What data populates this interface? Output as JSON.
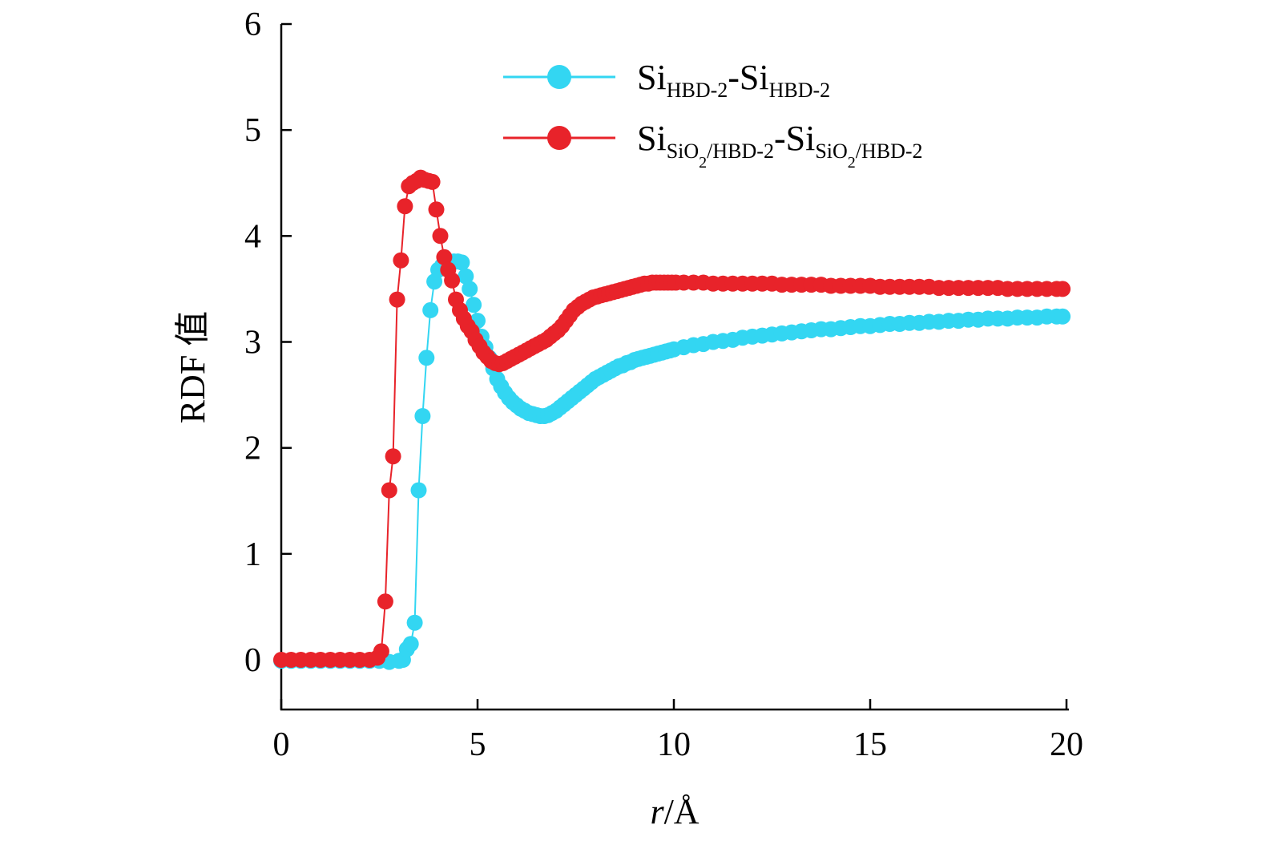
{
  "chart_data": {
    "type": "scatter",
    "xlabel_italic": "r",
    "xlabel_rest": "/Å",
    "ylabel": "RDF 值",
    "xlim": [
      0,
      20
    ],
    "ylim": [
      -0.45,
      6
    ],
    "xticks": [
      0,
      5,
      10,
      15,
      20
    ],
    "yticks": [
      0,
      1,
      2,
      3,
      4,
      5,
      6
    ],
    "xtick_labels": [
      "0",
      "5",
      "10",
      "15",
      "20"
    ],
    "ytick_labels": [
      "0",
      "1",
      "2",
      "3",
      "4",
      "5",
      "6"
    ],
    "grid": false,
    "legend_position": "top-right",
    "series": [
      {
        "name_main": "Si",
        "name_sub1": "HBD-2",
        "name_dash": "-Si",
        "name_sub2": "HBD-2",
        "color": "#33d6f2",
        "x": [
          0,
          0.25,
          0.5,
          0.75,
          1,
          1.25,
          1.5,
          1.75,
          2,
          2.25,
          2.5,
          2.75,
          3,
          3.1,
          3.2,
          3.3,
          3.4,
          3.5,
          3.6,
          3.7,
          3.8,
          3.9,
          4,
          4.1,
          4.2,
          4.3,
          4.4,
          4.5,
          4.6,
          4.7,
          4.8,
          4.9,
          5,
          5.1,
          5.2,
          5.3,
          5.4,
          5.5,
          5.6,
          5.7,
          5.8,
          5.9,
          6,
          6.1,
          6.2,
          6.3,
          6.4,
          6.5,
          6.6,
          6.7,
          6.8,
          6.9,
          7,
          7.1,
          7.2,
          7.3,
          7.4,
          7.5,
          7.6,
          7.7,
          7.8,
          7.9,
          8,
          8.1,
          8.2,
          8.3,
          8.4,
          8.5,
          8.6,
          8.7,
          8.8,
          8.9,
          9,
          9.1,
          9.2,
          9.3,
          9.4,
          9.5,
          9.6,
          9.7,
          9.8,
          9.9,
          10,
          10.25,
          10.5,
          10.75,
          11,
          11.25,
          11.5,
          11.75,
          12,
          12.25,
          12.5,
          12.75,
          13,
          13.25,
          13.5,
          13.75,
          14,
          14.25,
          14.5,
          14.75,
          15,
          15.25,
          15.5,
          15.75,
          16,
          16.25,
          16.5,
          16.75,
          17,
          17.25,
          17.5,
          17.75,
          18,
          18.25,
          18.5,
          18.75,
          19,
          19.25,
          19.5,
          19.75,
          19.9
        ],
        "y": [
          -0.01,
          -0.01,
          -0.01,
          -0.01,
          -0.01,
          -0.01,
          -0.01,
          -0.01,
          -0.01,
          -0.01,
          -0.01,
          -0.02,
          -0.01,
          0,
          0.1,
          0.15,
          0.35,
          1.6,
          2.3,
          2.85,
          3.3,
          3.57,
          3.68,
          3.72,
          3.74,
          3.75,
          3.76,
          3.76,
          3.75,
          3.62,
          3.5,
          3.35,
          3.2,
          3.05,
          2.95,
          2.85,
          2.75,
          2.65,
          2.58,
          2.52,
          2.47,
          2.43,
          2.4,
          2.37,
          2.35,
          2.33,
          2.32,
          2.31,
          2.3,
          2.3,
          2.31,
          2.33,
          2.35,
          2.38,
          2.41,
          2.44,
          2.47,
          2.5,
          2.53,
          2.56,
          2.59,
          2.62,
          2.65,
          2.67,
          2.69,
          2.71,
          2.73,
          2.75,
          2.77,
          2.78,
          2.8,
          2.81,
          2.83,
          2.84,
          2.85,
          2.86,
          2.87,
          2.88,
          2.89,
          2.9,
          2.91,
          2.92,
          2.93,
          2.95,
          2.97,
          2.98,
          3.0,
          3.01,
          3.02,
          3.04,
          3.05,
          3.06,
          3.07,
          3.08,
          3.09,
          3.1,
          3.11,
          3.12,
          3.12,
          3.13,
          3.14,
          3.15,
          3.15,
          3.16,
          3.17,
          3.17,
          3.18,
          3.18,
          3.19,
          3.19,
          3.2,
          3.2,
          3.21,
          3.21,
          3.22,
          3.22,
          3.22,
          3.23,
          3.23,
          3.23,
          3.24,
          3.24,
          3.24
        ]
      },
      {
        "name_main": "Si",
        "name_sub1": "SiO",
        "name_sub1_sub": "2",
        "name_sub1_rest": "/HBD-2",
        "name_dash": "-Si",
        "name_sub2": "SiO",
        "name_sub2_sub": "2",
        "name_sub2_rest": "/HBD-2",
        "color": "#e8232a",
        "x": [
          0,
          0.25,
          0.5,
          0.75,
          1,
          1.25,
          1.5,
          1.75,
          2,
          2.25,
          2.45,
          2.55,
          2.65,
          2.75,
          2.85,
          2.95,
          3.05,
          3.15,
          3.25,
          3.35,
          3.45,
          3.55,
          3.65,
          3.75,
          3.85,
          3.95,
          4.05,
          4.15,
          4.25,
          4.35,
          4.45,
          4.55,
          4.65,
          4.75,
          4.85,
          4.95,
          5.05,
          5.15,
          5.25,
          5.35,
          5.45,
          5.55,
          5.65,
          5.75,
          5.85,
          5.95,
          6.05,
          6.15,
          6.25,
          6.35,
          6.45,
          6.55,
          6.65,
          6.75,
          6.85,
          6.95,
          7.05,
          7.15,
          7.25,
          7.35,
          7.45,
          7.55,
          7.65,
          7.75,
          7.85,
          7.95,
          8.05,
          8.15,
          8.25,
          8.35,
          8.45,
          8.55,
          8.65,
          8.75,
          8.85,
          8.95,
          9.05,
          9.15,
          9.25,
          9.35,
          9.45,
          9.55,
          9.65,
          9.75,
          9.85,
          9.95,
          10.05,
          10.25,
          10.5,
          10.75,
          11,
          11.25,
          11.5,
          11.75,
          12,
          12.25,
          12.5,
          12.75,
          13,
          13.25,
          13.5,
          13.75,
          14,
          14.25,
          14.5,
          14.75,
          15,
          15.25,
          15.5,
          15.75,
          16,
          16.25,
          16.5,
          16.75,
          17,
          17.25,
          17.5,
          17.75,
          18,
          18.25,
          18.5,
          18.75,
          19,
          19.25,
          19.5,
          19.75,
          19.9
        ],
        "y": [
          0,
          0,
          0,
          0,
          0,
          0,
          0,
          0,
          0,
          0,
          0.02,
          0.08,
          0.55,
          1.6,
          1.92,
          3.4,
          3.77,
          4.28,
          4.47,
          4.5,
          4.52,
          4.55,
          4.53,
          4.52,
          4.51,
          4.25,
          4.0,
          3.8,
          3.68,
          3.58,
          3.4,
          3.3,
          3.22,
          3.15,
          3.1,
          3.02,
          2.96,
          2.9,
          2.86,
          2.82,
          2.8,
          2.79,
          2.8,
          2.82,
          2.84,
          2.86,
          2.88,
          2.9,
          2.92,
          2.94,
          2.96,
          2.98,
          3.0,
          3.02,
          3.05,
          3.08,
          3.11,
          3.15,
          3.2,
          3.25,
          3.3,
          3.33,
          3.36,
          3.38,
          3.4,
          3.42,
          3.43,
          3.44,
          3.45,
          3.46,
          3.47,
          3.48,
          3.49,
          3.5,
          3.51,
          3.52,
          3.53,
          3.54,
          3.55,
          3.55,
          3.56,
          3.56,
          3.56,
          3.56,
          3.56,
          3.56,
          3.56,
          3.56,
          3.56,
          3.56,
          3.55,
          3.55,
          3.55,
          3.55,
          3.55,
          3.55,
          3.55,
          3.54,
          3.54,
          3.54,
          3.54,
          3.54,
          3.53,
          3.53,
          3.53,
          3.53,
          3.53,
          3.52,
          3.52,
          3.52,
          3.52,
          3.52,
          3.52,
          3.51,
          3.51,
          3.51,
          3.51,
          3.51,
          3.51,
          3.51,
          3.5,
          3.5,
          3.5,
          3.5,
          3.5,
          3.5,
          3.5
        ]
      }
    ]
  }
}
